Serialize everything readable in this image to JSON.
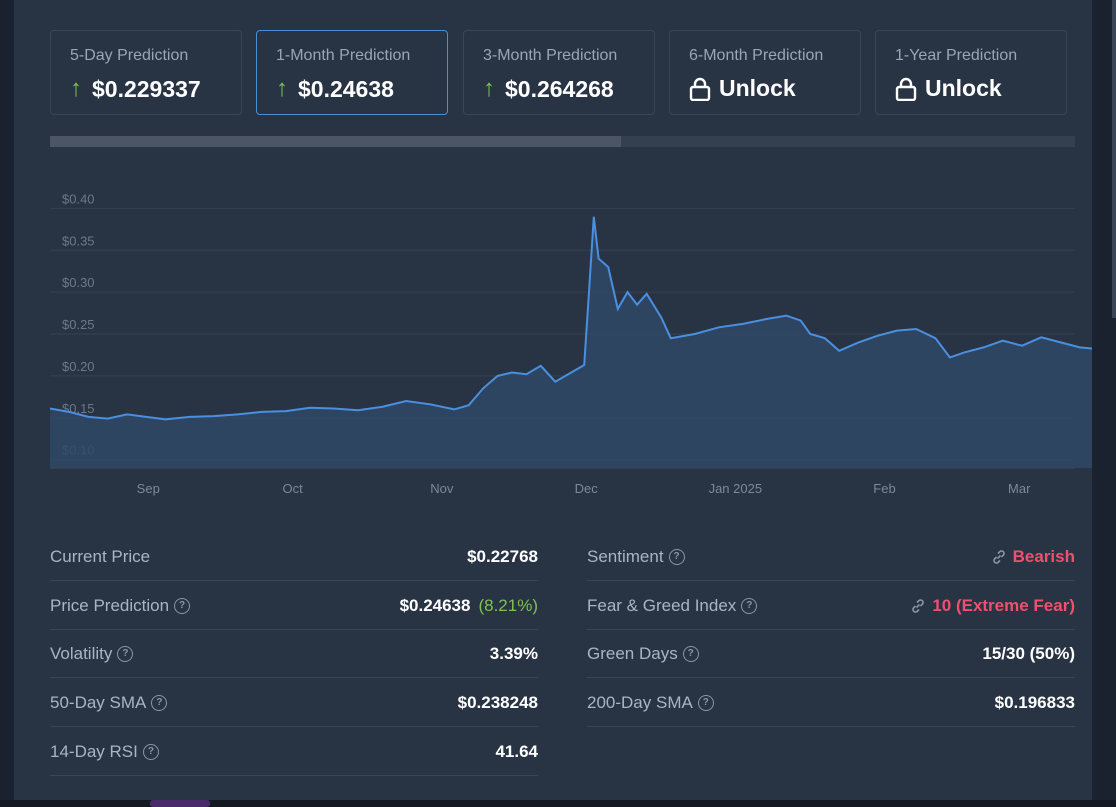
{
  "predictions": [
    {
      "label": "5-Day Prediction",
      "value": "$0.229337",
      "type": "up"
    },
    {
      "label": "1-Month Prediction",
      "value": "$0.24638",
      "type": "up",
      "active": true
    },
    {
      "label": "3-Month Prediction",
      "value": "$0.264268",
      "type": "up"
    },
    {
      "label": "6-Month Prediction",
      "value": "Unlock",
      "type": "lock"
    },
    {
      "label": "1-Year Prediction",
      "value": "Unlock",
      "type": "lock"
    }
  ],
  "progress_fraction": 0.557,
  "chart_data": {
    "type": "line",
    "title": "",
    "xlabel": "",
    "ylabel": "",
    "ylim": [
      0.09,
      0.41
    ],
    "yticks": [
      0.4,
      0.35,
      0.3,
      0.25,
      0.2,
      0.15,
      0.1
    ],
    "ytick_labels": [
      "$0.40",
      "$0.35",
      "$0.30",
      "$0.25",
      "$0.20",
      "$0.15",
      "$0.10"
    ],
    "xticks": [
      {
        "label": "Sep",
        "x": "2024-09-01"
      },
      {
        "label": "Oct",
        "x": "2024-10-01"
      },
      {
        "label": "Nov",
        "x": "2024-11-01"
      },
      {
        "label": "Dec",
        "x": "2024-12-01"
      },
      {
        "label": "Jan 2025",
        "x": "2025-01-01"
      },
      {
        "label": "Feb",
        "x": "2025-02-01"
      },
      {
        "label": "Mar",
        "x": "2025-03-01"
      }
    ],
    "xlim": [
      "2024-08-12",
      "2025-03-13"
    ],
    "grid": true,
    "series": [
      {
        "style": "solid",
        "color": "#4a8fe0",
        "points": [
          [
            "2024-08-12",
            0.161
          ],
          [
            "2024-08-16",
            0.157
          ],
          [
            "2024-08-20",
            0.151
          ],
          [
            "2024-08-24",
            0.149
          ],
          [
            "2024-08-28",
            0.154
          ],
          [
            "2024-09-01",
            0.151
          ],
          [
            "2024-09-05",
            0.148
          ],
          [
            "2024-09-10",
            0.151
          ],
          [
            "2024-09-15",
            0.152
          ],
          [
            "2024-09-20",
            0.154
          ],
          [
            "2024-09-25",
            0.157
          ],
          [
            "2024-09-30",
            0.158
          ],
          [
            "2024-10-05",
            0.162
          ],
          [
            "2024-10-10",
            0.161
          ],
          [
            "2024-10-15",
            0.159
          ],
          [
            "2024-10-20",
            0.163
          ],
          [
            "2024-10-25",
            0.17
          ],
          [
            "2024-10-30",
            0.166
          ],
          [
            "2024-11-04",
            0.16
          ],
          [
            "2024-11-07",
            0.165
          ],
          [
            "2024-11-10",
            0.185
          ],
          [
            "2024-11-13",
            0.2
          ],
          [
            "2024-11-16",
            0.204
          ],
          [
            "2024-11-19",
            0.202
          ],
          [
            "2024-11-22",
            0.212
          ],
          [
            "2024-11-25",
            0.193
          ],
          [
            "2024-11-28",
            0.203
          ],
          [
            "2024-12-01",
            0.213
          ],
          [
            "2024-12-02",
            0.3
          ],
          [
            "2024-12-03",
            0.39
          ],
          [
            "2024-12-04",
            0.34
          ],
          [
            "2024-12-06",
            0.33
          ],
          [
            "2024-12-08",
            0.28
          ],
          [
            "2024-12-10",
            0.3
          ],
          [
            "2024-12-12",
            0.285
          ],
          [
            "2024-12-14",
            0.298
          ],
          [
            "2024-12-17",
            0.27
          ],
          [
            "2024-12-19",
            0.245
          ],
          [
            "2024-12-24",
            0.25
          ],
          [
            "2024-12-29",
            0.258
          ],
          [
            "2025-01-03",
            0.262
          ],
          [
            "2025-01-08",
            0.268
          ],
          [
            "2025-01-12",
            0.272
          ],
          [
            "2025-01-15",
            0.266
          ],
          [
            "2025-01-17",
            0.25
          ],
          [
            "2025-01-20",
            0.245
          ],
          [
            "2025-01-23",
            0.23
          ],
          [
            "2025-01-27",
            0.24
          ],
          [
            "2025-01-31",
            0.248
          ],
          [
            "2025-02-04",
            0.254
          ],
          [
            "2025-02-08",
            0.256
          ],
          [
            "2025-02-12",
            0.245
          ],
          [
            "2025-02-15",
            0.222
          ],
          [
            "2025-02-18",
            0.228
          ],
          [
            "2025-02-22",
            0.234
          ],
          [
            "2025-02-26",
            0.242
          ],
          [
            "2025-03-02",
            0.236
          ],
          [
            "2025-03-06",
            0.246
          ],
          [
            "2025-03-10",
            0.24
          ],
          [
            "2025-03-14",
            0.234
          ],
          [
            "2025-03-18",
            0.232
          ],
          [
            "2025-03-22",
            0.227
          ]
        ]
      },
      {
        "style": "dashed",
        "color": "#a0a8b4",
        "points": [
          [
            "2025-03-22",
            0.227
          ],
          [
            "2025-03-28",
            0.232
          ],
          [
            "2025-04-03",
            0.235
          ],
          [
            "2025-04-09",
            0.234
          ],
          [
            "2025-04-15",
            0.236
          ],
          [
            "2025-04-19",
            0.246
          ],
          [
            "2025-04-23",
            0.244
          ],
          [
            "2025-04-26",
            0.24
          ],
          [
            "2025-04-30",
            0.248
          ]
        ]
      }
    ]
  },
  "stats_left": [
    {
      "label": "Current Price",
      "help": false,
      "value": "$0.22768"
    },
    {
      "label": "Price Prediction",
      "help": true,
      "value": "$0.24638",
      "extra": "(8.21%)"
    },
    {
      "label": "Volatility",
      "help": true,
      "value": "3.39%"
    },
    {
      "label": "50-Day SMA",
      "help": true,
      "value": "$0.238248"
    },
    {
      "label": "14-Day RSI",
      "help": true,
      "value": "41.64"
    }
  ],
  "stats_right": [
    {
      "label": "Sentiment",
      "help": true,
      "value": "Bearish",
      "link": true,
      "color": "#f0506e"
    },
    {
      "label": "Fear & Greed Index",
      "help": true,
      "value": "10 (Extreme Fear)",
      "link": true,
      "color": "#f0506e"
    },
    {
      "label": "Green Days",
      "help": true,
      "value": "15/30 (50%)"
    },
    {
      "label": "200-Day SMA",
      "help": true,
      "value": "$0.196833"
    }
  ]
}
